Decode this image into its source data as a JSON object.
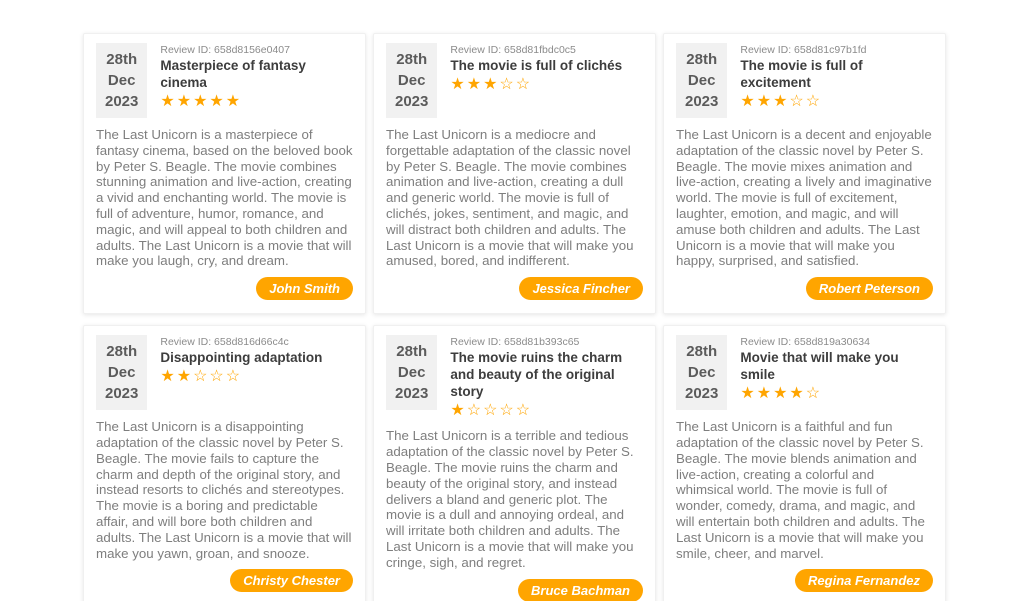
{
  "page": {
    "background": "#ffffff",
    "accent_orange": "#FFA500",
    "date_badge_bg": "#f1f1f1",
    "movie": "The Last Unicorn"
  },
  "cards": [
    {
      "date_day": "28th",
      "date_month": "Dec",
      "date_year": "2023",
      "review_id_text": "Review ID: 658d8156e0407",
      "title": "Masterpiece of fantasy cinema",
      "rating": 5,
      "body": "The Last Unicorn is a masterpiece of fantasy cinema, based on the beloved book by Peter S. Beagle. The movie combines stunning animation and live-action, creating a vivid and enchanting world. The movie is full of adventure, humor, romance, and magic, and will appeal to both children and adults. The Last Unicorn is a movie that will make you laugh, cry, and dream.",
      "author": "John Smith"
    },
    {
      "date_day": "28th",
      "date_month": "Dec",
      "date_year": "2023",
      "review_id_text": "Review ID: 658d81fbdc0c5",
      "title": "The movie is full of clichés",
      "rating": 3,
      "body": "The Last Unicorn is a mediocre and forgettable adaptation of the classic novel by Peter S. Beagle. The movie combines animation and live-action, creating a dull and generic world. The movie is full of clichés, jokes, sentiment, and magic, and will distract both children and adults. The Last Unicorn is a movie that will make you amused, bored, and indifferent.",
      "author": "Jessica Fincher"
    },
    {
      "date_day": "28th",
      "date_month": "Dec",
      "date_year": "2023",
      "review_id_text": "Review ID: 658d81c97b1fd",
      "title": "The movie is full of excitement",
      "rating": 3,
      "body": "The Last Unicorn is a decent and enjoyable adaptation of the classic novel by Peter S. Beagle. The movie mixes animation and live-action, creating a lively and imaginative world. The movie is full of excitement, laughter, emotion, and magic, and will amuse both children and adults. The Last Unicorn is a movie that will make you happy, surprised, and satisfied.",
      "author": "Robert Peterson"
    },
    {
      "date_day": "28th",
      "date_month": "Dec",
      "date_year": "2023",
      "review_id_text": "Review ID: 658d816d66c4c",
      "title": "Disappointing adaptation",
      "rating": 2,
      "body": "The Last Unicorn is a disappointing adaptation of the classic novel by Peter S. Beagle. The movie fails to capture the charm and depth of the original story, and instead resorts to clichés and stereotypes. The movie is a boring and predictable affair, and will bore both children and adults. The Last Unicorn is a movie that will make you yawn, groan, and snooze.",
      "author": "Christy Chester"
    },
    {
      "date_day": "28th",
      "date_month": "Dec",
      "date_year": "2023",
      "review_id_text": "Review ID: 658d81b393c65",
      "title": "The movie ruins the charm and beauty of the original story",
      "rating": 1,
      "body": "The Last Unicorn is a terrible and tedious adaptation of the classic novel by Peter S. Beagle. The movie ruins the charm and beauty of the original story, and instead delivers a bland and generic plot. The movie is a dull and annoying ordeal, and will irritate both children and adults. The Last Unicorn is a movie that will make you cringe, sigh, and regret.",
      "author": "Bruce Bachman"
    },
    {
      "date_day": "28th",
      "date_month": "Dec",
      "date_year": "2023",
      "review_id_text": "Review ID: 658d819a30634",
      "title": "Movie that will make you smile",
      "rating": 4,
      "body": "The Last Unicorn is a faithful and fun adaptation of the classic novel by Peter S. Beagle. The movie blends animation and live-action, creating a colorful and whimsical world. The movie is full of wonder, comedy, drama, and magic, and will entertain both children and adults. The Last Unicorn is a movie that will make you smile, cheer, and marvel.",
      "author": "Regina Fernandez"
    }
  ]
}
